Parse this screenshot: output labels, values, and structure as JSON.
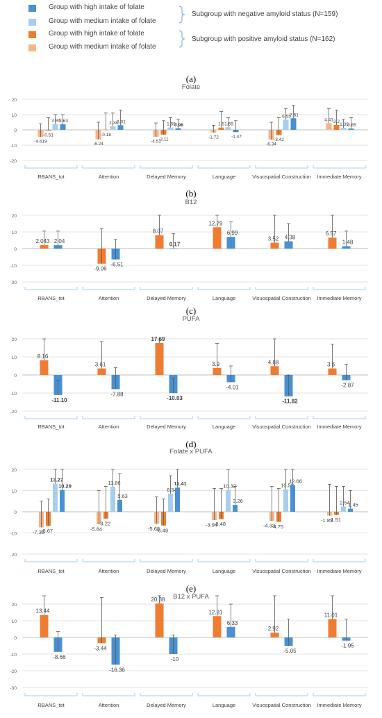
{
  "legend": {
    "items": [
      {
        "label": "Group with high intake of folate",
        "color": "#4a90d0"
      },
      {
        "label": "Group with medium intake of folate",
        "color": "#a9cdec"
      },
      {
        "label": "Group with high intake of folate",
        "color": "#ee7d31"
      },
      {
        "label": "Group with medium intake of folate",
        "color": "#f6b48a"
      }
    ],
    "subgroups": [
      "Subgroup with negative amyloid status (N=159)",
      "Subgroup with positive amyloid status (N=162)"
    ]
  },
  "panel_letters": [
    "(a)",
    "(b)",
    "(c)",
    "(d)",
    "(e)"
  ],
  "chart_data": [
    {
      "type": "bar",
      "title": "Folate",
      "ylim": [
        -20,
        20
      ],
      "yticks": [
        -20,
        -10,
        0,
        10,
        20
      ],
      "categories": [
        "RBANS_tot",
        "Attention",
        "Delayed Memory",
        "Language",
        "Visuospatial Construction",
        "Immediate Memory"
      ],
      "series": [
        {
          "color": "#f6b48a",
          "values": [
            -4.619,
            -6.24,
            -4.51,
            -1.72,
            -6.34,
            4.41
          ],
          "err_top": [
            4,
            5,
            4.5,
            3,
            5,
            14
          ]
        },
        {
          "color": "#ee7d31",
          "values": [
            -0.51,
            -0.18,
            -3.11,
            1.5,
            -3.42,
            3.2
          ],
          "err_top": [
            8,
            11,
            6,
            12,
            8,
            13
          ]
        },
        {
          "color": "#a9cdec",
          "values": [
            3.94,
            2.38,
            1.55,
            1.69,
            6.55,
            1.35
          ],
          "err_top": [
            10,
            11,
            8,
            8,
            14,
            7
          ]
        },
        {
          "color": "#4a90d0",
          "values": [
            3.63,
            3.01,
            0.98,
            -1.47,
            7.61,
            0.85
          ],
          "err_top": [
            10,
            13,
            7,
            6,
            16,
            8
          ]
        }
      ],
      "value_labels": [
        [
          "-4.619",
          "-6.24",
          "-4.51",
          "-1.72",
          "-6.34",
          "4.41"
        ],
        [
          "-0.51",
          "-0.18",
          "-3.11",
          "1.5",
          "-3.42",
          "3.2"
        ],
        [
          "3.94",
          "2.38",
          "1.55",
          "1.69",
          "6.55",
          "1.35"
        ],
        [
          "3.63",
          "3.01",
          "0.98",
          "-1.47",
          "7.61",
          "0.85"
        ]
      ],
      "significance": [
        [
          false,
          false,
          false,
          false,
          false,
          false
        ],
        [
          false,
          false,
          false,
          false,
          false,
          false
        ],
        [
          false,
          false,
          false,
          false,
          false,
          false
        ],
        [
          false,
          false,
          true,
          false,
          false,
          false
        ]
      ]
    },
    {
      "type": "bar",
      "title": "B12",
      "ylim": [
        -20,
        20
      ],
      "yticks": [
        -20,
        -10,
        0,
        10,
        20
      ],
      "categories": [
        "RBANS_tot",
        "Attention",
        "Delayed Memory",
        "Language",
        "Visuospatial Construction",
        "Immediate Memory"
      ],
      "series": [
        {
          "color": "#ee7d31",
          "values": [
            2.043,
            -9.06,
            8.07,
            12.79,
            3.52,
            6.57
          ],
          "err_top": [
            10.5,
            12,
            20,
            20,
            20,
            20
          ]
        },
        {
          "color": "#4a90d0",
          "values": [
            2.04,
            -6.51,
            0.17,
            6.99,
            4.38,
            1.48
          ],
          "err_top": [
            10.5,
            5.5,
            9,
            16,
            15,
            10.5
          ]
        }
      ],
      "value_labels": [
        [
          "2.043",
          "-9.06",
          "8.07",
          "12.79",
          "3.52",
          "6.57"
        ],
        [
          "2.04",
          "-6.51",
          "0.17",
          "6.99",
          "4.38",
          "1.48"
        ]
      ],
      "significance": [
        [
          false,
          false,
          false,
          false,
          false,
          false
        ],
        [
          false,
          false,
          true,
          false,
          false,
          false
        ]
      ]
    },
    {
      "type": "bar",
      "title": "PUFA",
      "ylim": [
        -20,
        20
      ],
      "yticks": [
        -20,
        -10,
        0,
        10,
        20
      ],
      "categories": [
        "RBANS_tot",
        "Attention",
        "Delayed Memory",
        "Language",
        "Visuospatial Construction",
        "Immediate Memory"
      ],
      "series": [
        {
          "color": "#ee7d31",
          "values": [
            8.16,
            3.61,
            17.69,
            3.9,
            4.88,
            3.6
          ],
          "err_top": [
            20,
            18.5,
            20,
            17.5,
            20,
            17
          ]
        },
        {
          "color": "#4a90d0",
          "values": [
            -11.1,
            -7.88,
            -10.03,
            -4.01,
            -11.82,
            -2.87
          ],
          "err_top": [
            -3,
            4,
            -2,
            5,
            0,
            6
          ]
        }
      ],
      "value_labels": [
        [
          "8.16",
          "3.61",
          "17.69",
          "3.9",
          "4.88",
          "3.6"
        ],
        [
          "-11.10",
          "-7.88",
          "-10.03",
          "-4.01",
          "-11.82",
          "-2.87"
        ]
      ],
      "significance": [
        [
          false,
          false,
          true,
          false,
          false,
          false
        ],
        [
          true,
          false,
          true,
          false,
          true,
          false
        ]
      ]
    },
    {
      "type": "bar",
      "title": "Folate x PUFA",
      "ylim": [
        -20,
        20
      ],
      "yticks": [
        -20,
        -10,
        0,
        10,
        20
      ],
      "categories": [
        "RBANS_tot",
        "Attention",
        "Delayed Memory",
        "Language",
        "Visuospatial Construction",
        "Immediate Memory"
      ],
      "series": [
        {
          "color": "#f6b48a",
          "values": [
            -7.36,
            -5.84,
            -5.68,
            -3.94,
            -4.33,
            -1.83
          ],
          "err_top": [
            5,
            10,
            7,
            11,
            12,
            13
          ]
        },
        {
          "color": "#ee7d31",
          "values": [
            -6.67,
            -3.22,
            -6.49,
            -3.48,
            -4.75,
            -1.51
          ],
          "err_top": [
            6,
            12,
            6,
            11,
            11,
            12
          ]
        },
        {
          "color": "#a9cdec",
          "values": [
            13.27,
            11.86,
            8.54,
            10.32,
            10.58,
            2.54
          ],
          "err_top": [
            20,
            20,
            17,
            20,
            20,
            12
          ]
        },
        {
          "color": "#4a90d0",
          "values": [
            10.29,
            5.63,
            11.41,
            3.26,
            12.66,
            1.45
          ],
          "err_top": [
            20,
            18,
            20,
            12,
            20,
            10
          ]
        }
      ],
      "value_labels": [
        [
          "-7.36",
          "-5.84",
          "-5.68",
          "-3.94",
          "-4.33",
          "-1.83"
        ],
        [
          "-6.67",
          "-3.22",
          "-6.49",
          "-3.48",
          "-4.75",
          "-1.51"
        ],
        [
          "13.27",
          "11.86",
          "8.54",
          "10.32",
          "10.58",
          "2.54"
        ],
        [
          "10.29",
          "5.63",
          "11.41",
          "3.26",
          "12.66",
          "1.45"
        ]
      ],
      "significance": [
        [
          false,
          false,
          false,
          false,
          false,
          false
        ],
        [
          false,
          false,
          false,
          false,
          false,
          false
        ],
        [
          true,
          false,
          false,
          false,
          false,
          false
        ],
        [
          true,
          false,
          true,
          false,
          false,
          false
        ]
      ]
    },
    {
      "type": "bar",
      "title": "B12 x PUFA",
      "ylim": [
        -30,
        20
      ],
      "yticks": [
        -30,
        -20,
        -10,
        0,
        10,
        20
      ],
      "categories": [
        "RBANS_tot",
        "Attention",
        "Delayed Memory",
        "Language",
        "Visuospatial Construction",
        "Immediate Memory"
      ],
      "series": [
        {
          "color": "#ee7d31",
          "values": [
            13.44,
            -3.44,
            20.38,
            12.81,
            2.92,
            11.01
          ],
          "err_top": [
            25,
            24,
            25,
            25,
            25,
            25
          ]
        },
        {
          "color": "#4a90d0",
          "values": [
            -8.66,
            -16.36,
            -10,
            6.33,
            -5.05,
            -1.95
          ],
          "err_top": [
            3.5,
            1.5,
            1.5,
            20,
            11,
            11
          ]
        }
      ],
      "value_labels": [
        [
          "13.44",
          "-3.44",
          "20.38",
          "12.81",
          "2.92",
          "11.01"
        ],
        [
          "-8.66",
          "-16.36",
          "-10",
          "6.33",
          "-5.05",
          "-1.95"
        ]
      ],
      "significance": [
        [
          false,
          false,
          false,
          false,
          false,
          false
        ],
        [
          false,
          false,
          false,
          false,
          false,
          false
        ]
      ]
    }
  ]
}
